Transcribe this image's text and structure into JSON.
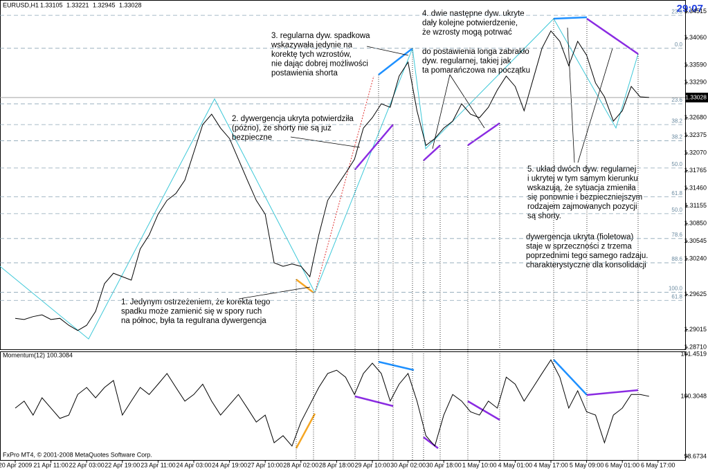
{
  "chart_data": [
    {
      "type": "line",
      "title": "EURUSD,H1",
      "ohlc": [
        1.33105,
        1.33221,
        1.32945,
        1.33028
      ],
      "timer": "29:07",
      "footer": "FxPro MT4, © 2001-2008 MetaQuotes Software Corp.",
      "color": "#000000",
      "categories": [
        "20 Apr 2009",
        null,
        null,
        null,
        "21 Apr 11:00",
        null,
        null,
        null,
        "22 Apr 03:00",
        null,
        null,
        null,
        "22 Apr 19:00",
        null,
        null,
        null,
        "23 Apr 11:00",
        null,
        null,
        null,
        "24 Apr 03:00",
        null,
        null,
        null,
        "24 Apr 19:00",
        null,
        null,
        null,
        "27 Apr 10:00",
        null,
        null,
        null,
        "28 Apr 02:00",
        null,
        null,
        null,
        "28 Apr 18:00",
        null,
        null,
        null,
        "29 Apr 10:00",
        null,
        null,
        null,
        "30 Apr 02:00",
        null,
        null,
        null,
        "30 Apr 18:00",
        null,
        null,
        null,
        "1 May 10:00",
        null,
        null,
        null,
        "4 May 01:00",
        null,
        null,
        null,
        "4 May 17:00",
        null,
        null,
        null,
        "5 May 09:00",
        null,
        null,
        null,
        "6 May 01:00",
        null,
        null,
        null,
        "6 May 17:00"
      ],
      "values": [
        1.2921,
        1.2919,
        1.2924,
        1.2927,
        1.2919,
        1.2921,
        1.2909,
        1.29,
        1.2909,
        1.2933,
        1.2981,
        1.2999,
        1.2993,
        1.2987,
        1.3041,
        1.3065,
        1.3101,
        1.3125,
        1.3137,
        1.316,
        1.3208,
        1.3256,
        1.3274,
        1.325,
        1.3232,
        1.3196,
        1.316,
        1.3125,
        1.3101,
        1.3017,
        1.3011,
        1.3015,
        1.3011,
        1.2993,
        1.3065,
        1.3125,
        1.3149,
        1.3172,
        1.3196,
        1.325,
        1.3268,
        1.3292,
        1.3286,
        1.334,
        1.3364,
        1.328,
        1.322,
        1.3232,
        1.325,
        1.3262,
        1.3292,
        1.3274,
        1.3268,
        1.3286,
        1.3316,
        1.334,
        1.3322,
        1.328,
        1.3334,
        1.3388,
        1.3418,
        1.34,
        1.3358,
        1.34,
        1.3376,
        1.3328,
        1.3304,
        1.3262,
        1.328,
        1.3322,
        1.3304,
        1.3303,
        null
      ],
      "ylim": [
        1.28674,
        1.34715
      ],
      "yticks": [
        1.34515,
        {
          "value": 1.3406,
          "label": "1.34060"
        },
        {
          "value": 1.3359,
          "label": "1.33590"
        },
        {
          "value": 1.3329,
          "label": "1.33290"
        },
        {
          "value": 1.3268,
          "label": "1.32680"
        },
        1.32375,
        {
          "value": 1.3207,
          "label": "1.32070"
        },
        1.31765,
        {
          "value": 1.3146,
          "label": "1.31460"
        },
        1.31155,
        {
          "value": 1.3085,
          "label": "1.30850"
        },
        1.30545,
        {
          "value": 1.3024,
          "label": "1.30240"
        },
        1.29625,
        1.29015,
        {
          "value": 1.2871,
          "label": "1.28710"
        }
      ],
      "fib_levels": [
        {
          "value": 1.3445,
          "label": "23.6"
        },
        {
          "value": 1.3388,
          "label": "0.0"
        },
        {
          "value": 1.3292,
          "label": "23.6"
        },
        {
          "value": 1.3256,
          "label": "38.2"
        },
        {
          "value": 1.3228,
          "label": "38.2"
        },
        {
          "value": 1.3181,
          "label": "50.0"
        },
        {
          "value": 1.3131,
          "label": "61.8"
        },
        {
          "value": 1.3102,
          "label": "50.0"
        },
        {
          "value": 1.3059,
          "label": "78.6"
        },
        {
          "value": 1.3017,
          "label": "88.6"
        },
        {
          "value": 1.2966,
          "label": "100.0"
        },
        {
          "value": 1.2952,
          "label": "61.8"
        }
      ],
      "annotations": [
        [
          "1. Jedynym ostrzeżeniem, że korekta tego",
          "spadku może zamienić się w spory ruch",
          "na północ, była ta regulrana dywergencja"
        ],
        [
          "2. dywergencja ukryta potwierdziła",
          "(późno), że shorty nie są już",
          "bezpieczne"
        ],
        [
          "3. regularna dyw. spadkowa",
          "wskazywała jedynie na",
          "korektę tych wzrostów,",
          "nie dając dobrej możliwości",
          "postawienia shorta"
        ],
        [
          "4. dwie następne dyw. ukryte",
          "dały kolejne potwierdzenie,",
          "że wzrosty mogą potrwać"
        ],
        [
          "do postawienia longa zabrakło",
          "dyw. regularnej, takiej jak",
          "ta pomarańczowa na początku"
        ],
        [
          "5. układ dwóch dyw. regularnej",
          "i ukrytej w tym samym kierunku",
          "wskazują, że sytuacja zmieniła",
          "się ponownie i bezpieczniejszym",
          "rodzajem zajmowanych pozycji",
          "są shorty."
        ],
        [
          "dywergencja ukryta (fioletowa)",
          "staje w sprzeczności z trzema",
          "poprzednimi tego samego radzaju.",
          "charakterystyczne dla konsolidacji"
        ]
      ]
    },
    {
      "type": "line",
      "title": "Momentum(12) 100.3084",
      "color": "#000000",
      "values": [
        99.99,
        100.18,
        99.8,
        100.27,
        99.99,
        99.71,
        99.8,
        100.36,
        100.55,
        100.27,
        100.55,
        100.74,
        99.8,
        100.18,
        100.55,
        100.36,
        100.64,
        100.93,
        100.55,
        100.18,
        100.36,
        100.64,
        100.18,
        99.8,
        100.08,
        100.36,
        99.99,
        99.61,
        99.8,
        99.05,
        99.24,
        98.96,
        99.61,
        100.08,
        100.55,
        100.93,
        101.02,
        100.83,
        100.36,
        100.93,
        101.21,
        100.93,
        100.18,
        100.64,
        100.93,
        100.18,
        99.24,
        98.96,
        99.8,
        100.36,
        100.18,
        99.89,
        99.8,
        100.18,
        99.99,
        100.83,
        100.64,
        100.18,
        100.55,
        100.93,
        101.3,
        100.83,
        99.99,
        100.46,
        99.89,
        99.8,
        99.05,
        99.8,
        99.99,
        100.36,
        100.36,
        100.31,
        null
      ],
      "ylim": [
        98.58,
        101.53
      ],
      "yticks": [
        101.4519,
        100.3048,
        98.6734
      ]
    }
  ]
}
